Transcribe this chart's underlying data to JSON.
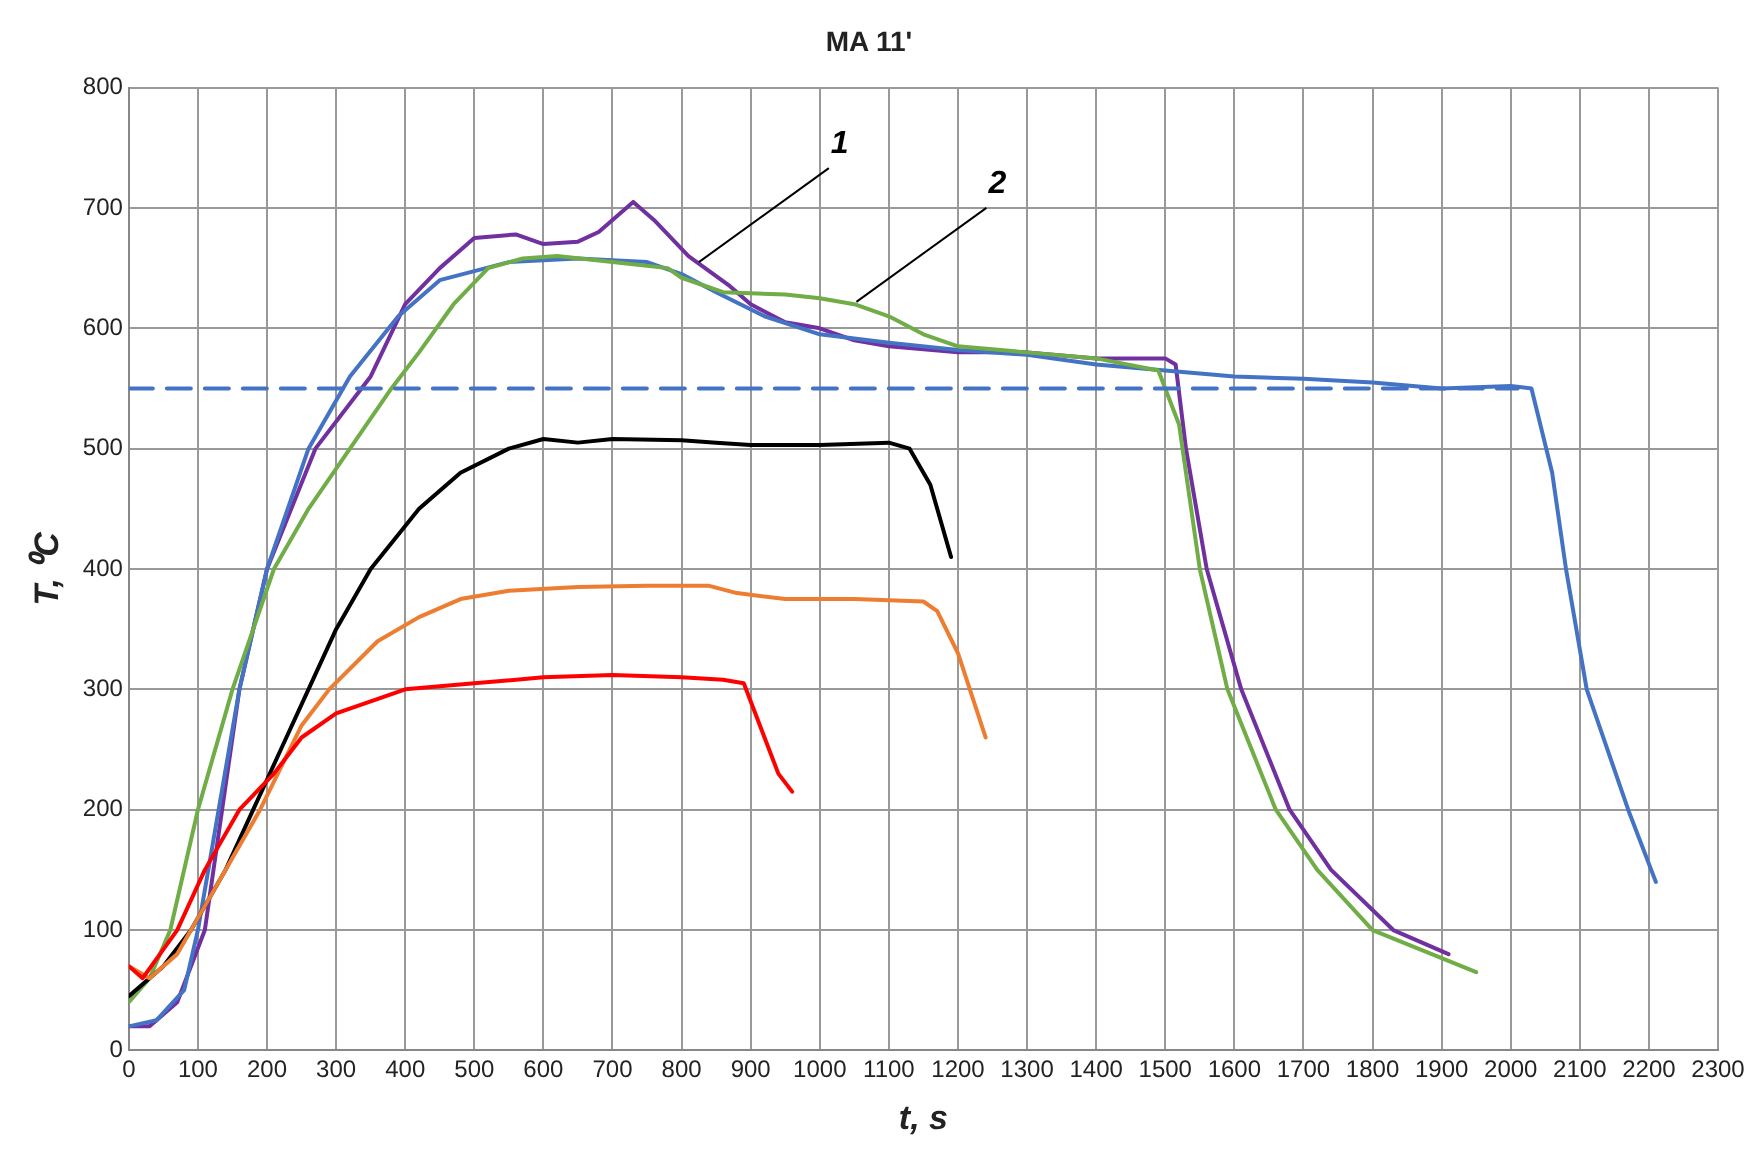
{
  "chart_data": {
    "type": "line",
    "title": "MA 11'",
    "xlabel": "t, s",
    "ylabel": "T, ⁰C",
    "xlim": [
      0,
      2300
    ],
    "xticks": [
      0,
      100,
      200,
      300,
      400,
      500,
      600,
      700,
      800,
      900,
      1000,
      1100,
      1200,
      1300,
      1400,
      1500,
      1600,
      1700,
      1800,
      1900,
      2000,
      2100,
      2200,
      2300
    ],
    "ylim": [
      0,
      800
    ],
    "yticks": [
      0,
      100,
      200,
      300,
      400,
      500,
      600,
      700,
      800
    ],
    "grid": true,
    "legend": false,
    "marker": "none",
    "annotations": [
      {
        "text": "1",
        "x": 825,
        "y": 655
      },
      {
        "text": "2",
        "x": 1053,
        "y": 622
      }
    ],
    "series": [
      {
        "color": "#4472c4",
        "line_style": "dashed",
        "x": [
          0,
          2010
        ],
        "values": [
          550,
          550
        ]
      },
      {
        "color": "#ff0000",
        "x": [
          0,
          20,
          70,
          110,
          160,
          210,
          250,
          300,
          400,
          500,
          600,
          700,
          800,
          860,
          890,
          920,
          940,
          960
        ],
        "values": [
          70,
          60,
          100,
          150,
          200,
          230,
          260,
          280,
          300,
          305,
          310,
          312,
          310,
          308,
          305,
          260,
          230,
          215
        ]
      },
      {
        "color": "#ed7d31",
        "x": [
          0,
          30,
          70,
          110,
          190,
          250,
          290,
          360,
          420,
          480,
          550,
          650,
          750,
          840,
          880,
          950,
          1050,
          1150,
          1170,
          1200,
          1240
        ],
        "values": [
          70,
          60,
          80,
          120,
          200,
          270,
          300,
          340,
          360,
          375,
          382,
          385,
          386,
          386,
          380,
          375,
          375,
          373,
          365,
          330,
          260
        ]
      },
      {
        "color": "#000000",
        "x": [
          0,
          50,
          90,
          140,
          180,
          220,
          260,
          300,
          350,
          420,
          480,
          550,
          600,
          650,
          700,
          800,
          850,
          900,
          1000,
          1100,
          1130,
          1160,
          1190
        ],
        "values": [
          45,
          70,
          100,
          150,
          200,
          250,
          300,
          350,
          400,
          450,
          480,
          500,
          508,
          505,
          508,
          507,
          505,
          503,
          503,
          505,
          500,
          470,
          410
        ]
      },
      {
        "color": "#70ad47",
        "x": [
          0,
          30,
          60,
          100,
          150,
          210,
          260,
          320,
          380,
          420,
          470,
          520,
          570,
          620,
          700,
          780,
          800,
          860,
          950,
          1000,
          1050,
          1100,
          1150,
          1200,
          1300,
          1400,
          1490,
          1520,
          1550,
          1590,
          1660,
          1720,
          1800,
          1950
        ],
        "values": [
          40,
          60,
          100,
          200,
          300,
          400,
          450,
          500,
          550,
          580,
          620,
          650,
          658,
          660,
          655,
          650,
          642,
          630,
          628,
          625,
          620,
          610,
          595,
          585,
          580,
          575,
          565,
          520,
          400,
          300,
          200,
          150,
          100,
          65
        ]
      },
      {
        "color": "#4472c4",
        "x": [
          0,
          40,
          80,
          100,
          130,
          160,
          200,
          260,
          320,
          390,
          450,
          550,
          650,
          750,
          800,
          850,
          920,
          1000,
          1100,
          1200,
          1300,
          1400,
          1500,
          1600,
          1700,
          1800,
          1900,
          2000,
          2030,
          2060,
          2080,
          2110,
          2170,
          2210
        ],
        "values": [
          20,
          25,
          50,
          100,
          200,
          300,
          400,
          500,
          560,
          610,
          640,
          655,
          658,
          655,
          645,
          630,
          610,
          595,
          588,
          582,
          578,
          570,
          565,
          560,
          558,
          555,
          550,
          552,
          550,
          480,
          400,
          300,
          200,
          140
        ]
      },
      {
        "color": "#7030a0",
        "x": [
          0,
          30,
          70,
          110,
          135,
          160,
          200,
          270,
          350,
          400,
          450,
          500,
          560,
          600,
          650,
          680,
          730,
          760,
          810,
          870,
          900,
          950,
          1000,
          1050,
          1100,
          1200,
          1300,
          1400,
          1500,
          1515,
          1530,
          1560,
          1610,
          1680,
          1740,
          1830,
          1910
        ],
        "values": [
          20,
          20,
          40,
          100,
          200,
          300,
          400,
          500,
          560,
          620,
          650,
          675,
          678,
          670,
          672,
          680,
          705,
          690,
          660,
          635,
          620,
          605,
          600,
          590,
          585,
          580,
          580,
          575,
          575,
          570,
          500,
          400,
          300,
          200,
          150,
          100,
          80
        ]
      }
    ]
  }
}
